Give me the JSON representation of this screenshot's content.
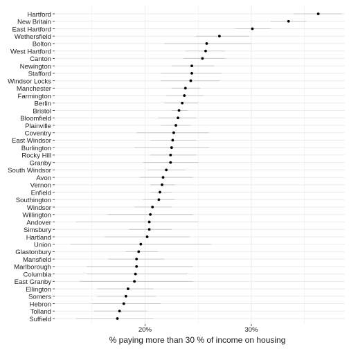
{
  "chart_data": {
    "type": "scatter",
    "subtype": "dot-plot-with-interval-lines",
    "xlabel": "% paying more than 30 % of income on housing",
    "xlim": [
      11.5,
      38.8
    ],
    "x_ticks": [
      20,
      30
    ],
    "x_tick_labels": [
      "20%",
      "30%"
    ],
    "grid": true,
    "colors": {
      "grid": "#ebebeb",
      "interval": "#c8c8c8",
      "point": "#000000",
      "text": "#3a3a3a"
    },
    "categories": [
      "Hartford",
      "New Britain",
      "East Hartford",
      "Wethersfield",
      "Bolton",
      "West Hartford",
      "Canton",
      "Newington",
      "Stafford",
      "Windsor Locks",
      "Manchester",
      "Farmington",
      "Berlin",
      "Bristol",
      "Bloomfield",
      "Plainville",
      "Coventry",
      "East Windsor",
      "Burlington",
      "Rocky Hill",
      "Granby",
      "South Windsor",
      "Avon",
      "Vernon",
      "Enfield",
      "Southington",
      "Windsor",
      "Willington",
      "Andover",
      "Simsbury",
      "Hartland",
      "Union",
      "Glastonbury",
      "Mansfield",
      "Marlborough",
      "Columbia",
      "East Granby",
      "Ellington",
      "Somers",
      "Hebron",
      "Tolland",
      "Suffield"
    ],
    "values": [
      36.3,
      33.5,
      30.1,
      27.0,
      25.8,
      25.7,
      25.4,
      24.4,
      24.4,
      24.3,
      23.8,
      23.7,
      23.5,
      23.2,
      23.1,
      22.9,
      22.7,
      22.6,
      22.5,
      22.4,
      22.4,
      22.0,
      21.7,
      21.6,
      21.4,
      21.3,
      20.7,
      20.5,
      20.4,
      20.4,
      20.2,
      19.6,
      19.4,
      19.2,
      19.2,
      19.1,
      19.0,
      18.4,
      18.2,
      18.0,
      17.6,
      17.4
    ],
    "lower": [
      34.0,
      31.8,
      28.5,
      24.8,
      21.8,
      23.8,
      23.6,
      22.5,
      21.5,
      21.5,
      22.5,
      22.0,
      21.8,
      22.5,
      21.2,
      21.5,
      19.2,
      20.5,
      19.0,
      20.5,
      19.8,
      20.2,
      19.5,
      20.5,
      20.5,
      19.8,
      19.0,
      16.5,
      13.5,
      18.5,
      16.2,
      13.0,
      18.2,
      16.5,
      14.5,
      14.5,
      13.8,
      15.5,
      15.5,
      15.0,
      15.2,
      13.5
    ],
    "upper": [
      38.5,
      35.2,
      31.8,
      29.8,
      30.0,
      27.5,
      27.5,
      26.5,
      27.2,
      27.0,
      25.2,
      25.5,
      25.0,
      24.0,
      24.8,
      24.3,
      26.0,
      24.8,
      26.0,
      24.8,
      25.0,
      23.8,
      24.5,
      22.8,
      22.5,
      22.8,
      22.5,
      24.5,
      25.0,
      22.5,
      24.2,
      26.2,
      21.2,
      21.8,
      24.5,
      24.0,
      24.5,
      20.8,
      21.0,
      21.5,
      20.2,
      20.8
    ]
  }
}
